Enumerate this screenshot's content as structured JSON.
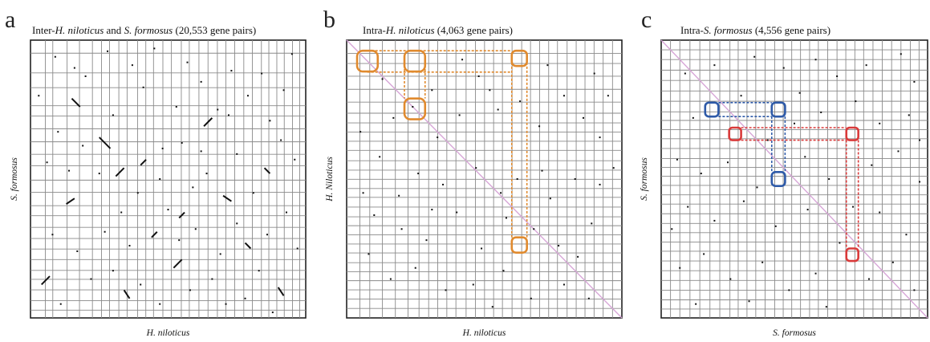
{
  "chart_data": [
    {
      "panel": "a",
      "type": "scatter",
      "title_parts": [
        {
          "text": "Inter-",
          "italic": false
        },
        {
          "text": "H. niloticus",
          "italic": true
        },
        {
          "text": "  and ",
          "italic": false
        },
        {
          "text": "S. formosus",
          "italic": true
        },
        {
          "text": " (20,553 gene pairs)",
          "italic": false
        }
      ],
      "xlabel": "H. niloticus",
      "ylabel": "S. formosus",
      "grid": true,
      "diagonal": false,
      "grid_x": [
        0.054,
        0.081,
        0.133,
        0.178,
        0.225,
        0.258,
        0.287,
        0.321,
        0.351,
        0.389,
        0.419,
        0.447,
        0.481,
        0.512,
        0.548,
        0.577,
        0.612,
        0.645,
        0.679,
        0.71,
        0.742,
        0.775,
        0.806,
        0.839,
        0.866,
        0.895,
        0.922,
        0.952,
        0.978
      ],
      "grid_y": [
        0.047,
        0.118,
        0.171,
        0.236,
        0.273,
        0.319,
        0.366,
        0.411,
        0.452,
        0.504,
        0.548,
        0.596,
        0.632,
        0.674,
        0.714,
        0.752,
        0.79,
        0.829,
        0.861,
        0.899,
        0.938,
        0.972
      ],
      "segments": [
        [
          0.25,
          0.35,
          0.29,
          0.39
        ],
        [
          0.4,
          0.45,
          0.42,
          0.43
        ],
        [
          0.31,
          0.49,
          0.34,
          0.46
        ],
        [
          0.56,
          0.62,
          0.54,
          0.64
        ],
        [
          0.44,
          0.71,
          0.46,
          0.69
        ],
        [
          0.63,
          0.31,
          0.66,
          0.28
        ],
        [
          0.04,
          0.88,
          0.07,
          0.85
        ],
        [
          0.78,
          0.73,
          0.8,
          0.75
        ],
        [
          0.52,
          0.82,
          0.55,
          0.79
        ],
        [
          0.15,
          0.21,
          0.18,
          0.24
        ],
        [
          0.7,
          0.56,
          0.73,
          0.58
        ],
        [
          0.13,
          0.59,
          0.16,
          0.57
        ],
        [
          0.85,
          0.46,
          0.87,
          0.48
        ],
        [
          0.34,
          0.9,
          0.36,
          0.93
        ],
        [
          0.9,
          0.89,
          0.92,
          0.92
        ]
      ],
      "points": [
        [
          0.16,
          0.1
        ],
        [
          0.2,
          0.13
        ],
        [
          0.57,
          0.08
        ],
        [
          0.73,
          0.11
        ],
        [
          0.68,
          0.25
        ],
        [
          0.72,
          0.27
        ],
        [
          0.1,
          0.33
        ],
        [
          0.41,
          0.17
        ],
        [
          0.53,
          0.24
        ],
        [
          0.55,
          0.37
        ],
        [
          0.48,
          0.39
        ],
        [
          0.62,
          0.4
        ],
        [
          0.75,
          0.41
        ],
        [
          0.3,
          0.27
        ],
        [
          0.19,
          0.38
        ],
        [
          0.06,
          0.44
        ],
        [
          0.25,
          0.48
        ],
        [
          0.39,
          0.55
        ],
        [
          0.47,
          0.5
        ],
        [
          0.59,
          0.53
        ],
        [
          0.64,
          0.48
        ],
        [
          0.81,
          0.55
        ],
        [
          0.87,
          0.29
        ],
        [
          0.91,
          0.36
        ],
        [
          0.95,
          0.05
        ],
        [
          0.84,
          0.12
        ],
        [
          0.08,
          0.7
        ],
        [
          0.17,
          0.76
        ],
        [
          0.27,
          0.69
        ],
        [
          0.36,
          0.74
        ],
        [
          0.5,
          0.61
        ],
        [
          0.6,
          0.68
        ],
        [
          0.69,
          0.77
        ],
        [
          0.75,
          0.66
        ],
        [
          0.86,
          0.7
        ],
        [
          0.93,
          0.62
        ],
        [
          0.22,
          0.86
        ],
        [
          0.3,
          0.83
        ],
        [
          0.4,
          0.88
        ],
        [
          0.47,
          0.95
        ],
        [
          0.58,
          0.9
        ],
        [
          0.66,
          0.86
        ],
        [
          0.78,
          0.93
        ],
        [
          0.83,
          0.83
        ],
        [
          0.11,
          0.95
        ],
        [
          0.03,
          0.2
        ],
        [
          0.09,
          0.06
        ],
        [
          0.28,
          0.04
        ],
        [
          0.37,
          0.09
        ],
        [
          0.45,
          0.03
        ],
        [
          0.62,
          0.15
        ],
        [
          0.79,
          0.2
        ],
        [
          0.92,
          0.18
        ],
        [
          0.96,
          0.43
        ],
        [
          0.97,
          0.75
        ],
        [
          0.14,
          0.47
        ],
        [
          0.33,
          0.62
        ],
        [
          0.54,
          0.72
        ],
        [
          0.71,
          0.95
        ],
        [
          0.88,
          0.98
        ]
      ]
    },
    {
      "panel": "b",
      "type": "scatter",
      "title_parts": [
        {
          "text": "Intra-",
          "italic": false
        },
        {
          "text": "H. niloticus",
          "italic": true
        },
        {
          "text": " (4,063 gene pairs)",
          "italic": false
        }
      ],
      "xlabel": "H. niloticus",
      "ylabel": "H. Niloticus",
      "grid": true,
      "diagonal": true,
      "grid_x": [
        0.048,
        0.084,
        0.13,
        0.177,
        0.223,
        0.263,
        0.298,
        0.331,
        0.364,
        0.397,
        0.434,
        0.468,
        0.501,
        0.534,
        0.566,
        0.601,
        0.636,
        0.668,
        0.701,
        0.734,
        0.766,
        0.801,
        0.834,
        0.866,
        0.899,
        0.932,
        0.966
      ],
      "grid_y": [
        0.048,
        0.084,
        0.13,
        0.177,
        0.223,
        0.263,
        0.298,
        0.331,
        0.364,
        0.397,
        0.434,
        0.468,
        0.501,
        0.534,
        0.566,
        0.601,
        0.636,
        0.668,
        0.701,
        0.734,
        0.766,
        0.801,
        0.834,
        0.866,
        0.899,
        0.932,
        0.966
      ],
      "boxes": [
        {
          "x": 0.038,
          "y": 0.038,
          "s": 0.075,
          "color": "#e08a2e"
        },
        {
          "x": 0.21,
          "y": 0.038,
          "s": 0.075,
          "color": "#e08a2e"
        },
        {
          "x": 0.21,
          "y": 0.21,
          "s": 0.075,
          "color": "#e08a2e"
        },
        {
          "x": 0.6,
          "y": 0.038,
          "s": 0.055,
          "color": "#e08a2e"
        },
        {
          "x": 0.6,
          "y": 0.71,
          "s": 0.055,
          "color": "#e08a2e"
        }
      ],
      "box_color": "#e08a2e",
      "links": [
        [
          0.075,
          0.038,
          0.6,
          0.038
        ],
        [
          0.075,
          0.115,
          0.6,
          0.115
        ],
        [
          0.21,
          0.075,
          0.21,
          0.21
        ],
        [
          0.285,
          0.075,
          0.285,
          0.21
        ],
        [
          0.6,
          0.066,
          0.6,
          0.71
        ],
        [
          0.655,
          0.066,
          0.655,
          0.71
        ]
      ],
      "points": [
        [
          0.24,
          0.24
        ],
        [
          0.17,
          0.28
        ],
        [
          0.31,
          0.18
        ],
        [
          0.33,
          0.35
        ],
        [
          0.41,
          0.27
        ],
        [
          0.52,
          0.18
        ],
        [
          0.55,
          0.25
        ],
        [
          0.63,
          0.22
        ],
        [
          0.7,
          0.31
        ],
        [
          0.79,
          0.2
        ],
        [
          0.86,
          0.28
        ],
        [
          0.92,
          0.35
        ],
        [
          0.12,
          0.42
        ],
        [
          0.26,
          0.48
        ],
        [
          0.35,
          0.52
        ],
        [
          0.47,
          0.46
        ],
        [
          0.56,
          0.55
        ],
        [
          0.71,
          0.47
        ],
        [
          0.83,
          0.5
        ],
        [
          0.92,
          0.52
        ],
        [
          0.1,
          0.63
        ],
        [
          0.2,
          0.68
        ],
        [
          0.29,
          0.72
        ],
        [
          0.4,
          0.62
        ],
        [
          0.49,
          0.75
        ],
        [
          0.68,
          0.68
        ],
        [
          0.77,
          0.74
        ],
        [
          0.89,
          0.66
        ],
        [
          0.16,
          0.86
        ],
        [
          0.25,
          0.82
        ],
        [
          0.36,
          0.9
        ],
        [
          0.46,
          0.88
        ],
        [
          0.57,
          0.83
        ],
        [
          0.67,
          0.93
        ],
        [
          0.79,
          0.88
        ],
        [
          0.88,
          0.93
        ],
        [
          0.05,
          0.33
        ],
        [
          0.06,
          0.55
        ],
        [
          0.13,
          0.14
        ],
        [
          0.42,
          0.07
        ],
        [
          0.48,
          0.13
        ],
        [
          0.73,
          0.09
        ],
        [
          0.9,
          0.12
        ],
        [
          0.95,
          0.2
        ],
        [
          0.97,
          0.46
        ],
        [
          0.58,
          0.64
        ],
        [
          0.74,
          0.57
        ],
        [
          0.19,
          0.56
        ],
        [
          0.31,
          0.61
        ],
        [
          0.84,
          0.78
        ],
        [
          0.62,
          0.5
        ],
        [
          0.08,
          0.77
        ],
        [
          0.53,
          0.96
        ]
      ]
    },
    {
      "panel": "c",
      "type": "scatter",
      "title_parts": [
        {
          "text": "Intra-",
          "italic": false
        },
        {
          "text": "S. formosus",
          "italic": true
        },
        {
          "text": " (4,556 gene pairs)",
          "italic": false
        }
      ],
      "xlabel": "S. formosus",
      "ylabel": "S. formosus",
      "grid": true,
      "diagonal": true,
      "grid_x": [
        0.035,
        0.07,
        0.108,
        0.145,
        0.183,
        0.22,
        0.258,
        0.289,
        0.322,
        0.355,
        0.39,
        0.426,
        0.458,
        0.49,
        0.523,
        0.557,
        0.59,
        0.625,
        0.66,
        0.693,
        0.727,
        0.76,
        0.795,
        0.83,
        0.865,
        0.9,
        0.935,
        0.968
      ],
      "grid_y": [
        0.035,
        0.07,
        0.108,
        0.145,
        0.183,
        0.22,
        0.258,
        0.289,
        0.322,
        0.355,
        0.39,
        0.426,
        0.458,
        0.49,
        0.523,
        0.557,
        0.59,
        0.625,
        0.66,
        0.693,
        0.727,
        0.76,
        0.795,
        0.83,
        0.865,
        0.9,
        0.935,
        0.968
      ],
      "boxes": [
        {
          "x": 0.165,
          "y": 0.225,
          "s": 0.05,
          "color": "#2e5aa8"
        },
        {
          "x": 0.415,
          "y": 0.225,
          "s": 0.05,
          "color": "#2e5aa8"
        },
        {
          "x": 0.415,
          "y": 0.475,
          "s": 0.05,
          "color": "#2e5aa8"
        },
        {
          "x": 0.255,
          "y": 0.315,
          "s": 0.045,
          "color": "#d93a3a"
        },
        {
          "x": 0.695,
          "y": 0.315,
          "s": 0.045,
          "color": "#d93a3a"
        },
        {
          "x": 0.695,
          "y": 0.75,
          "s": 0.045,
          "color": "#d93a3a"
        }
      ],
      "links": [
        [
          0.215,
          0.225,
          0.415,
          0.225,
          "#2e5aa8"
        ],
        [
          0.215,
          0.275,
          0.415,
          0.275,
          "#2e5aa8"
        ],
        [
          0.415,
          0.275,
          0.415,
          0.475,
          "#2e5aa8"
        ],
        [
          0.465,
          0.275,
          0.465,
          0.475,
          "#2e5aa8"
        ],
        [
          0.3,
          0.315,
          0.695,
          0.315,
          "#d93a3a"
        ],
        [
          0.3,
          0.36,
          0.695,
          0.36,
          "#d93a3a"
        ],
        [
          0.695,
          0.36,
          0.695,
          0.75,
          "#d93a3a"
        ],
        [
          0.74,
          0.36,
          0.74,
          0.75,
          "#d93a3a"
        ]
      ],
      "points": [
        [
          0.09,
          0.12
        ],
        [
          0.2,
          0.09
        ],
        [
          0.35,
          0.06
        ],
        [
          0.46,
          0.1
        ],
        [
          0.58,
          0.07
        ],
        [
          0.66,
          0.13
        ],
        [
          0.77,
          0.09
        ],
        [
          0.9,
          0.05
        ],
        [
          0.95,
          0.15
        ],
        [
          0.12,
          0.28
        ],
        [
          0.3,
          0.2
        ],
        [
          0.52,
          0.19
        ],
        [
          0.6,
          0.26
        ],
        [
          0.73,
          0.22
        ],
        [
          0.82,
          0.3
        ],
        [
          0.93,
          0.27
        ],
        [
          0.06,
          0.43
        ],
        [
          0.15,
          0.48
        ],
        [
          0.25,
          0.44
        ],
        [
          0.36,
          0.53
        ],
        [
          0.54,
          0.42
        ],
        [
          0.63,
          0.5
        ],
        [
          0.79,
          0.45
        ],
        [
          0.89,
          0.4
        ],
        [
          0.97,
          0.51
        ],
        [
          0.1,
          0.6
        ],
        [
          0.2,
          0.65
        ],
        [
          0.31,
          0.58
        ],
        [
          0.43,
          0.67
        ],
        [
          0.55,
          0.61
        ],
        [
          0.82,
          0.62
        ],
        [
          0.92,
          0.7
        ],
        [
          0.07,
          0.82
        ],
        [
          0.16,
          0.77
        ],
        [
          0.26,
          0.86
        ],
        [
          0.38,
          0.8
        ],
        [
          0.48,
          0.9
        ],
        [
          0.58,
          0.84
        ],
        [
          0.78,
          0.86
        ],
        [
          0.87,
          0.8
        ],
        [
          0.95,
          0.9
        ],
        [
          0.13,
          0.95
        ],
        [
          0.33,
          0.94
        ],
        [
          0.62,
          0.96
        ],
        [
          0.72,
          0.6
        ],
        [
          0.4,
          0.36
        ],
        [
          0.5,
          0.3
        ],
        [
          0.04,
          0.68
        ],
        [
          0.97,
          0.36
        ],
        [
          0.67,
          0.73
        ]
      ]
    }
  ],
  "panel_letters": [
    "a",
    "b",
    "c"
  ],
  "colors": {
    "frame": "#222222",
    "grid": "#8a8a8a",
    "diagonal": "#d7a6d7",
    "orange": "#e08a2e",
    "blue": "#2e5aa8",
    "red": "#d93a3a"
  }
}
